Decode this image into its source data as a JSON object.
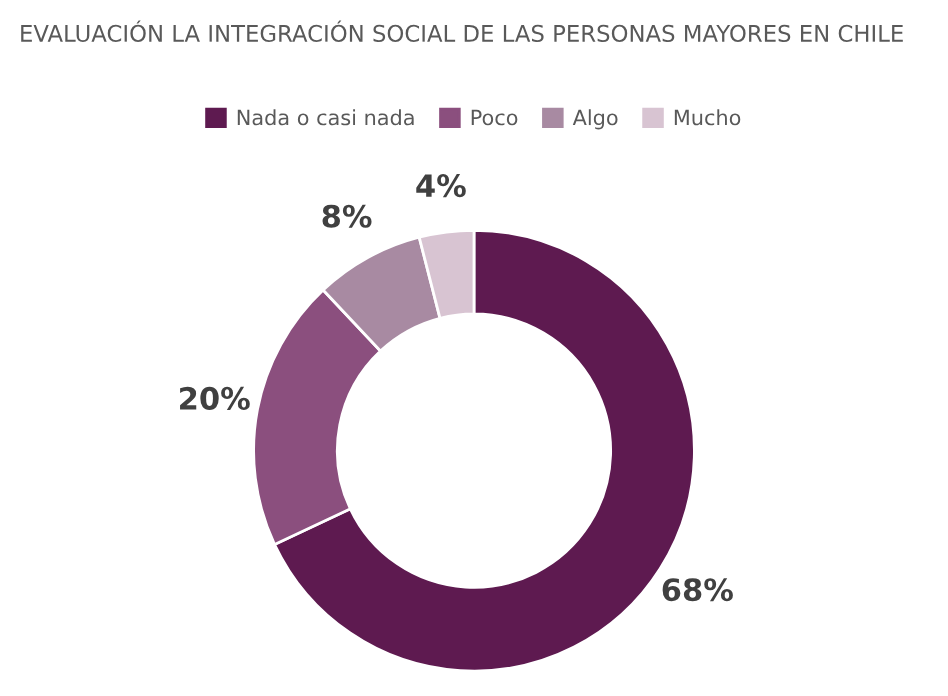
{
  "chart_data": {
    "type": "donut",
    "title": "EVALUACIÓN LA INTEGRACIÓN SOCIAL DE LAS PERSONAS MAYORES EN CHILE",
    "categories": [
      "Nada o casi nada",
      "Poco",
      "Algo",
      "Mucho"
    ],
    "values": [
      68,
      20,
      8,
      4
    ],
    "value_labels": [
      "68%",
      "20%",
      "8%",
      "4%"
    ],
    "colors": [
      "#5e1a50",
      "#8b4f7e",
      "#a88aa2",
      "#d8c4d2"
    ],
    "legend": "top"
  }
}
